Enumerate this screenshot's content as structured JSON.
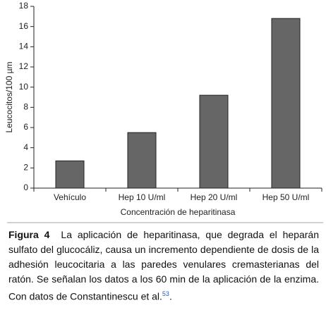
{
  "chart_data": {
    "type": "bar",
    "x_label": "Concentración de heparitinasa",
    "y_label": "Leucocitos/100 µm",
    "categories": [
      "Vehículo",
      "Hep 10 U/ml",
      "Hep 20 U/ml",
      "Hep 50 U/ml"
    ],
    "values": [
      2.7,
      5.5,
      9.2,
      16.8
    ],
    "color": "#666666",
    "ylim": [
      0,
      18
    ],
    "yticks": [
      0,
      2,
      4,
      6,
      8,
      10,
      12,
      14,
      16,
      18
    ],
    "grid": false
  },
  "caption": {
    "label": "Figura 4",
    "text": "La aplicación de heparitinasa, que degrada el heparán sulfato del glucocáliz, causa un incremento dependiente de dosis de la adhesión leucocitaria a las paredes venulares cremasterianas del ratón. Se señalan los datos a los 60 min de la aplicación de la enzima. Con datos de Constantinescu et al.",
    "ref": "53",
    "end": "."
  }
}
